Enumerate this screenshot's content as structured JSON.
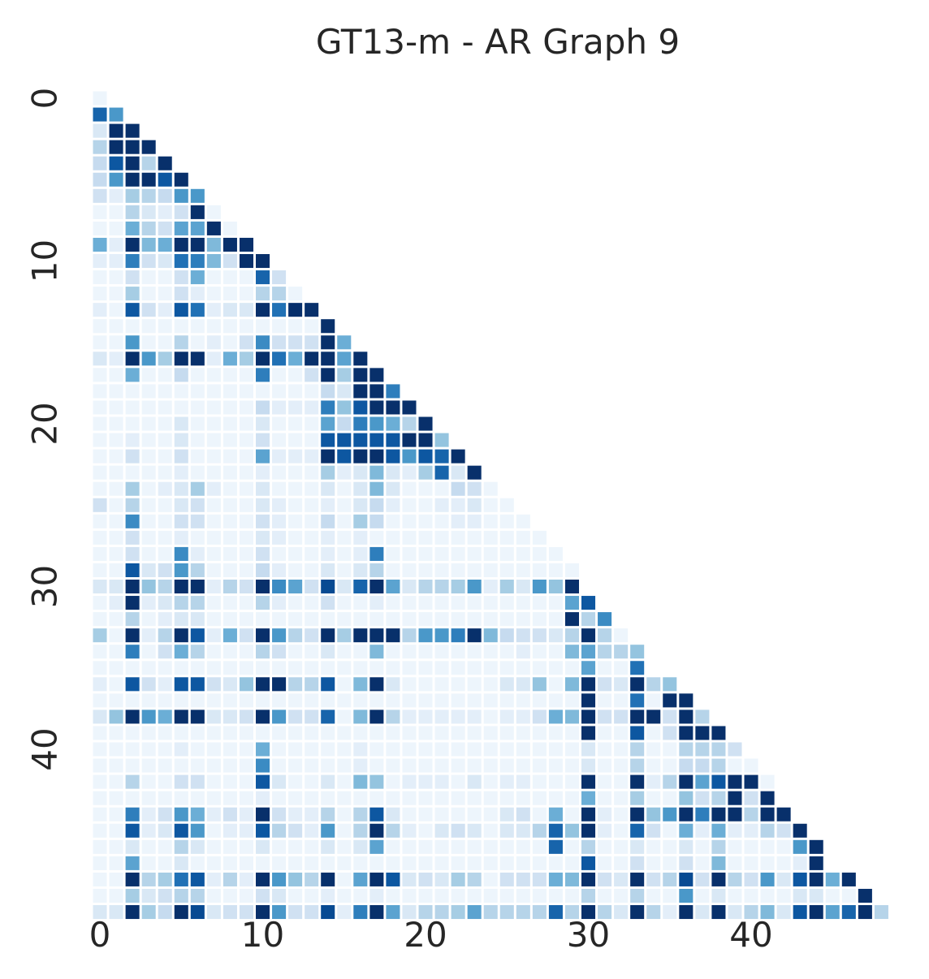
{
  "chart_data": {
    "type": "heatmap",
    "title": "GT13-m - AR Graph 9",
    "xlabel": "",
    "ylabel": "",
    "size": 49,
    "mask": "lower-triangle",
    "colormap": "Blues",
    "color_low": "#f7fbff",
    "color_high": "#08306b",
    "vmin": 0,
    "vmax": 1,
    "x_ticks": [
      0,
      10,
      20,
      30,
      40
    ],
    "y_ticks": [
      0,
      10,
      20,
      30,
      40
    ],
    "grid": false,
    "colorbar": false,
    "rows": [
      [
        0.05
      ],
      [
        0.8,
        0.6
      ],
      [
        0.15,
        1.0,
        1.0
      ],
      [
        0.3,
        1.0,
        1.0,
        1.0
      ],
      [
        0.25,
        0.85,
        1.0,
        0.3,
        1.0
      ],
      [
        0.25,
        0.6,
        1.0,
        1.0,
        0.85,
        1.0
      ],
      [
        0.2,
        0.1,
        0.35,
        0.3,
        0.25,
        0.6,
        0.6
      ],
      [
        0.05,
        0.05,
        0.3,
        0.15,
        0.1,
        0.2,
        1.0,
        0.05
      ],
      [
        0.05,
        0.05,
        0.5,
        0.3,
        0.2,
        0.55,
        0.55,
        1.0,
        0.05
      ],
      [
        0.5,
        0.1,
        1.0,
        0.45,
        0.5,
        1.0,
        1.0,
        0.45,
        1.0,
        1.0
      ],
      [
        0.1,
        0.1,
        0.7,
        0.2,
        0.15,
        0.75,
        0.7,
        0.45,
        0.2,
        1.0,
        1.0
      ],
      [
        0.05,
        0.05,
        0.2,
        0.05,
        0.05,
        0.2,
        0.5,
        0.05,
        0.05,
        0.05,
        0.8,
        0.2
      ],
      [
        0.05,
        0.05,
        0.35,
        0.05,
        0.05,
        0.2,
        0.1,
        0.05,
        0.05,
        0.05,
        0.3,
        0.3,
        0.05
      ],
      [
        0.1,
        0.05,
        0.85,
        0.2,
        0.1,
        0.85,
        0.75,
        0.1,
        0.15,
        0.15,
        1.0,
        0.75,
        1.0,
        1.0
      ],
      [
        0.05,
        0.05,
        0.05,
        0.05,
        0.05,
        0.05,
        0.05,
        0.05,
        0.05,
        0.05,
        0.05,
        0.05,
        0.05,
        0.05,
        1.0
      ],
      [
        0.05,
        0.05,
        0.6,
        0.05,
        0.05,
        0.3,
        0.05,
        0.1,
        0.05,
        0.2,
        0.65,
        0.2,
        0.2,
        0.2,
        1.0,
        0.5
      ],
      [
        0.15,
        0.1,
        1.0,
        0.6,
        0.35,
        1.0,
        1.0,
        0.1,
        0.5,
        0.35,
        1.0,
        0.75,
        0.5,
        1.0,
        1.0,
        0.55,
        1.0
      ],
      [
        0.05,
        0.05,
        0.5,
        0.05,
        0.05,
        0.25,
        0.05,
        0.05,
        0.05,
        0.05,
        0.7,
        0.05,
        0.05,
        0.2,
        1.0,
        0.35,
        1.0,
        1.0
      ],
      [
        0.05,
        0.05,
        0.05,
        0.05,
        0.05,
        0.05,
        0.05,
        0.05,
        0.05,
        0.05,
        0.05,
        0.05,
        0.05,
        0.05,
        0.25,
        0.15,
        1.0,
        1.0,
        0.7
      ],
      [
        0.05,
        0.05,
        0.05,
        0.05,
        0.05,
        0.05,
        0.05,
        0.05,
        0.05,
        0.05,
        0.25,
        0.1,
        0.1,
        0.1,
        0.7,
        0.4,
        0.85,
        1.0,
        1.0,
        1.0
      ],
      [
        0.05,
        0.05,
        0.05,
        0.05,
        0.05,
        0.15,
        0.05,
        0.05,
        0.05,
        0.05,
        0.15,
        0.05,
        0.05,
        0.05,
        0.55,
        0.25,
        0.7,
        0.6,
        0.5,
        0.3,
        1.0
      ],
      [
        0.05,
        0.05,
        0.1,
        0.05,
        0.05,
        0.15,
        0.05,
        0.05,
        0.05,
        0.05,
        0.2,
        0.05,
        0.05,
        0.05,
        0.85,
        0.85,
        0.85,
        0.85,
        0.85,
        1.0,
        1.0,
        0.4
      ],
      [
        0.05,
        0.05,
        0.2,
        0.05,
        0.05,
        0.2,
        0.05,
        0.05,
        0.05,
        0.05,
        0.55,
        0.1,
        0.1,
        0.1,
        1.0,
        0.85,
        1.0,
        1.0,
        0.85,
        0.6,
        0.85,
        0.8,
        1.0
      ],
      [
        0.05,
        0.05,
        0.05,
        0.05,
        0.05,
        0.1,
        0.05,
        0.05,
        0.05,
        0.05,
        0.1,
        0.05,
        0.05,
        0.05,
        0.35,
        0.1,
        0.15,
        0.45,
        0.15,
        0.1,
        0.35,
        0.8,
        0.15,
        1.0
      ],
      [
        0.05,
        0.05,
        0.35,
        0.05,
        0.1,
        0.15,
        0.35,
        0.1,
        0.05,
        0.05,
        0.15,
        0.05,
        0.05,
        0.05,
        0.15,
        0.05,
        0.15,
        0.45,
        0.15,
        0.05,
        0.05,
        0.05,
        0.25,
        0.2,
        0.05
      ],
      [
        0.2,
        0.05,
        0.3,
        0.05,
        0.05,
        0.15,
        0.2,
        0.05,
        0.05,
        0.05,
        0.15,
        0.1,
        0.05,
        0.05,
        0.1,
        0.05,
        0.15,
        0.25,
        0.1,
        0.05,
        0.05,
        0.1,
        0.1,
        0.15,
        0.05,
        0.05
      ],
      [
        0.05,
        0.05,
        0.65,
        0.05,
        0.05,
        0.2,
        0.2,
        0.05,
        0.05,
        0.05,
        0.2,
        0.1,
        0.05,
        0.05,
        0.25,
        0.05,
        0.35,
        0.25,
        0.05,
        0.05,
        0.05,
        0.05,
        0.1,
        0.1,
        0.05,
        0.05,
        0.05
      ],
      [
        0.05,
        0.05,
        0.2,
        0.05,
        0.05,
        0.1,
        0.05,
        0.05,
        0.05,
        0.05,
        0.15,
        0.1,
        0.05,
        0.05,
        0.1,
        0.05,
        0.1,
        0.05,
        0.05,
        0.05,
        0.05,
        0.05,
        0.05,
        0.05,
        0.05,
        0.05,
        0.05,
        0.05
      ],
      [
        0.05,
        0.05,
        0.2,
        0.05,
        0.05,
        0.65,
        0.1,
        0.05,
        0.05,
        0.05,
        0.2,
        0.05,
        0.05,
        0.05,
        0.1,
        0.05,
        0.1,
        0.7,
        0.05,
        0.05,
        0.05,
        0.05,
        0.05,
        0.05,
        0.05,
        0.05,
        0.05,
        0.05,
        0.05
      ],
      [
        0.05,
        0.05,
        0.85,
        0.15,
        0.2,
        0.6,
        0.3,
        0.05,
        0.05,
        0.05,
        0.25,
        0.1,
        0.05,
        0.05,
        0.15,
        0.05,
        0.15,
        0.3,
        0.05,
        0.05,
        0.05,
        0.05,
        0.05,
        0.05,
        0.05,
        0.05,
        0.05,
        0.05,
        0.05,
        0.05
      ],
      [
        0.15,
        0.15,
        1.0,
        0.4,
        0.3,
        1.0,
        1.0,
        0.1,
        0.3,
        0.2,
        1.0,
        0.65,
        0.55,
        0.2,
        0.9,
        0.15,
        0.8,
        1.0,
        0.55,
        0.15,
        0.3,
        0.3,
        0.35,
        0.6,
        0.1,
        0.35,
        0.15,
        0.6,
        0.4,
        1.0
      ],
      [
        0.05,
        0.1,
        1.0,
        0.1,
        0.15,
        0.3,
        0.3,
        0.05,
        0.05,
        0.05,
        0.3,
        0.1,
        0.05,
        0.05,
        0.2,
        0.05,
        0.05,
        0.1,
        0.05,
        0.05,
        0.05,
        0.05,
        0.05,
        0.05,
        0.05,
        0.05,
        0.05,
        0.05,
        0.05,
        0.55,
        0.85
      ],
      [
        0.05,
        0.05,
        0.3,
        0.05,
        0.1,
        0.15,
        0.15,
        0.05,
        0.05,
        0.05,
        0.05,
        0.05,
        0.05,
        0.05,
        0.05,
        0.05,
        0.05,
        0.05,
        0.05,
        0.05,
        0.05,
        0.05,
        0.05,
        0.05,
        0.05,
        0.05,
        0.05,
        0.05,
        0.05,
        1.0,
        0.3,
        0.65
      ],
      [
        0.35,
        0.05,
        1.0,
        0.1,
        0.3,
        1.0,
        0.85,
        0.1,
        0.5,
        0.2,
        1.0,
        0.6,
        0.3,
        0.2,
        1.0,
        0.35,
        1.0,
        1.0,
        1.0,
        0.3,
        0.6,
        0.6,
        0.7,
        1.0,
        0.45,
        0.25,
        0.2,
        0.2,
        0.15,
        0.3,
        1.0,
        0.3,
        0.05
      ],
      [
        0.05,
        0.05,
        0.7,
        0.05,
        0.2,
        0.5,
        0.3,
        0.05,
        0.05,
        0.05,
        0.3,
        0.2,
        0.05,
        0.05,
        0.15,
        0.05,
        0.05,
        0.45,
        0.05,
        0.05,
        0.05,
        0.05,
        0.05,
        0.05,
        0.05,
        0.05,
        0.1,
        0.05,
        0.05,
        0.45,
        0.55,
        0.3,
        0.3,
        0.4
      ],
      [
        0.05,
        0.05,
        0.05,
        0.05,
        0.05,
        0.05,
        0.05,
        0.05,
        0.05,
        0.05,
        0.05,
        0.05,
        0.05,
        0.05,
        0.05,
        0.05,
        0.05,
        0.05,
        0.05,
        0.05,
        0.05,
        0.05,
        0.05,
        0.05,
        0.05,
        0.05,
        0.05,
        0.05,
        0.05,
        0.05,
        0.55,
        0.05,
        0.05,
        0.75
      ],
      [
        0.1,
        0.05,
        0.85,
        0.2,
        0.1,
        0.85,
        0.85,
        0.2,
        0.15,
        0.4,
        1.0,
        1.0,
        0.3,
        0.3,
        0.85,
        0.05,
        0.45,
        1.0,
        0.15,
        0.05,
        0.05,
        0.05,
        0.05,
        0.05,
        0.05,
        0.15,
        0.15,
        0.4,
        0.05,
        0.45,
        1.0,
        0.2,
        0.15,
        1.0,
        0.3,
        0.4
      ],
      [
        0.05,
        0.05,
        0.05,
        0.05,
        0.05,
        0.05,
        0.05,
        0.05,
        0.05,
        0.05,
        0.05,
        0.05,
        0.05,
        0.05,
        0.05,
        0.05,
        0.05,
        0.05,
        0.05,
        0.05,
        0.05,
        0.05,
        0.05,
        0.05,
        0.05,
        0.05,
        0.05,
        0.05,
        0.05,
        0.05,
        1.0,
        0.05,
        0.05,
        0.75,
        0.05,
        1.0,
        1.0
      ],
      [
        0.15,
        0.4,
        1.0,
        0.6,
        0.5,
        1.0,
        1.0,
        0.15,
        0.15,
        0.2,
        1.0,
        0.6,
        0.2,
        0.2,
        0.8,
        0.05,
        0.45,
        1.0,
        0.3,
        0.1,
        0.1,
        0.1,
        0.1,
        0.1,
        0.05,
        0.1,
        0.1,
        0.2,
        0.5,
        0.45,
        1.0,
        0.2,
        0.2,
        1.0,
        1.0,
        0.2,
        1.0,
        0.3
      ],
      [
        0.05,
        0.05,
        0.05,
        0.05,
        0.05,
        0.05,
        0.05,
        0.05,
        0.05,
        0.05,
        0.05,
        0.05,
        0.05,
        0.05,
        0.05,
        0.05,
        0.05,
        0.05,
        0.05,
        0.05,
        0.05,
        0.05,
        0.05,
        0.05,
        0.05,
        0.05,
        0.05,
        0.05,
        0.05,
        0.05,
        1.0,
        0.05,
        0.05,
        0.85,
        0.05,
        0.2,
        1.0,
        1.0,
        1.0
      ],
      [
        0.05,
        0.05,
        0.05,
        0.05,
        0.05,
        0.1,
        0.05,
        0.05,
        0.05,
        0.05,
        0.5,
        0.05,
        0.05,
        0.05,
        0.05,
        0.05,
        0.1,
        0.05,
        0.05,
        0.05,
        0.05,
        0.05,
        0.05,
        0.05,
        0.05,
        0.05,
        0.05,
        0.05,
        0.05,
        0.05,
        0.15,
        0.05,
        0.05,
        0.3,
        0.05,
        0.05,
        0.3,
        0.3,
        0.3,
        0.2
      ],
      [
        0.05,
        0.05,
        0.05,
        0.05,
        0.05,
        0.05,
        0.05,
        0.05,
        0.05,
        0.05,
        0.65,
        0.05,
        0.05,
        0.05,
        0.05,
        0.05,
        0.1,
        0.05,
        0.05,
        0.05,
        0.05,
        0.05,
        0.05,
        0.05,
        0.05,
        0.05,
        0.05,
        0.05,
        0.05,
        0.05,
        0.15,
        0.05,
        0.05,
        0.3,
        0.05,
        0.05,
        0.25,
        0.25,
        0.3,
        0.05,
        0.05
      ],
      [
        0.05,
        0.05,
        0.3,
        0.05,
        0.05,
        0.2,
        0.2,
        0.05,
        0.05,
        0.05,
        0.85,
        0.15,
        0.05,
        0.05,
        0.15,
        0.05,
        0.45,
        0.4,
        0.05,
        0.1,
        0.1,
        0.1,
        0.05,
        0.15,
        0.05,
        0.1,
        0.1,
        0.05,
        0.05,
        0.05,
        1.0,
        0.05,
        0.05,
        1.0,
        0.1,
        0.3,
        1.0,
        0.55,
        0.85,
        1.0,
        1.0,
        0.05
      ],
      [
        0.05,
        0.05,
        0.05,
        0.05,
        0.05,
        0.05,
        0.05,
        0.05,
        0.05,
        0.05,
        0.1,
        0.05,
        0.05,
        0.05,
        0.05,
        0.05,
        0.05,
        0.05,
        0.05,
        0.05,
        0.05,
        0.05,
        0.05,
        0.05,
        0.05,
        0.05,
        0.05,
        0.05,
        0.05,
        0.05,
        0.5,
        0.05,
        0.05,
        0.35,
        0.05,
        0.05,
        0.4,
        0.2,
        0.3,
        1.0,
        0.2,
        1.0
      ],
      [
        0.05,
        0.05,
        0.7,
        0.1,
        0.2,
        0.6,
        0.5,
        0.1,
        0.2,
        0.1,
        1.0,
        0.2,
        0.1,
        0.1,
        0.3,
        0.05,
        0.3,
        0.85,
        0.15,
        0.05,
        0.05,
        0.05,
        0.05,
        0.05,
        0.05,
        0.15,
        0.2,
        0.05,
        0.5,
        0.05,
        1.0,
        0.1,
        0.05,
        1.0,
        0.4,
        0.6,
        1.0,
        0.7,
        1.0,
        1.0,
        0.3,
        1.0,
        1.0
      ],
      [
        0.05,
        0.05,
        0.85,
        0.1,
        0.15,
        0.85,
        0.6,
        0.05,
        0.1,
        0.1,
        0.85,
        0.3,
        0.2,
        0.1,
        0.6,
        0.05,
        0.3,
        1.0,
        0.3,
        0.1,
        0.05,
        0.15,
        0.2,
        0.15,
        0.05,
        0.15,
        0.15,
        0.3,
        0.8,
        0.4,
        1.0,
        0.1,
        0.05,
        0.8,
        0.2,
        0.05,
        0.5,
        0.1,
        0.5,
        0.1,
        0.1,
        0.3,
        0.2,
        1.0
      ],
      [
        0.05,
        0.05,
        0.15,
        0.05,
        0.05,
        0.3,
        0.15,
        0.05,
        0.05,
        0.05,
        0.15,
        0.05,
        0.05,
        0.05,
        0.15,
        0.05,
        0.15,
        0.55,
        0.05,
        0.05,
        0.05,
        0.05,
        0.05,
        0.05,
        0.05,
        0.05,
        0.05,
        0.05,
        0.8,
        0.05,
        0.3,
        0.05,
        0.05,
        0.15,
        0.05,
        0.05,
        0.15,
        0.05,
        0.3,
        0.05,
        0.05,
        0.05,
        0.05,
        0.6,
        1.0
      ],
      [
        0.05,
        0.05,
        0.55,
        0.05,
        0.05,
        0.15,
        0.05,
        0.05,
        0.05,
        0.05,
        0.05,
        0.05,
        0.05,
        0.05,
        0.05,
        0.05,
        0.05,
        0.05,
        0.05,
        0.05,
        0.05,
        0.05,
        0.05,
        0.05,
        0.05,
        0.05,
        0.05,
        0.05,
        0.05,
        0.05,
        0.85,
        0.05,
        0.05,
        0.2,
        0.05,
        0.05,
        0.2,
        0.05,
        0.45,
        0.05,
        0.05,
        0.05,
        0.05,
        0.1,
        1.0
      ],
      [
        0.05,
        0.05,
        1.0,
        0.3,
        0.35,
        0.75,
        0.85,
        0.1,
        0.3,
        0.1,
        1.0,
        0.6,
        0.4,
        0.3,
        1.0,
        0.05,
        0.55,
        1.0,
        0.85,
        0.15,
        0.2,
        0.15,
        0.35,
        0.3,
        0.05,
        0.2,
        0.2,
        0.2,
        0.5,
        0.45,
        1.0,
        0.2,
        0.15,
        1.0,
        0.2,
        0.3,
        0.9,
        0.2,
        1.0,
        0.3,
        0.2,
        0.6,
        0.15,
        0.85,
        1.0,
        0.5,
        1.0
      ],
      [
        0.05,
        0.05,
        0.35,
        0.15,
        0.2,
        0.3,
        0.3,
        0.05,
        0.05,
        0.05,
        0.2,
        0.15,
        0.05,
        0.05,
        0.1,
        0.05,
        0.05,
        0.1,
        0.05,
        0.05,
        0.05,
        0.05,
        0.05,
        0.05,
        0.05,
        0.05,
        0.05,
        0.05,
        0.05,
        0.05,
        0.3,
        0.05,
        0.05,
        0.3,
        0.05,
        0.05,
        0.6,
        0.05,
        0.15,
        0.05,
        0.05,
        0.05,
        0.05,
        0.15,
        0.15,
        0.05,
        0.05,
        1.0
      ],
      [
        0.15,
        0.15,
        1.0,
        0.35,
        0.25,
        1.0,
        0.9,
        0.15,
        0.2,
        0.2,
        1.0,
        0.6,
        0.2,
        0.2,
        0.9,
        0.1,
        0.7,
        1.0,
        0.55,
        0.15,
        0.3,
        0.3,
        0.35,
        0.55,
        0.3,
        0.3,
        0.3,
        0.3,
        0.8,
        0.3,
        1.0,
        0.3,
        0.15,
        1.0,
        0.3,
        0.1,
        1.0,
        0.15,
        1.0,
        0.15,
        0.3,
        0.45,
        0.15,
        0.85,
        1.0,
        0.55,
        0.8,
        1.0,
        0.3
      ]
    ]
  }
}
